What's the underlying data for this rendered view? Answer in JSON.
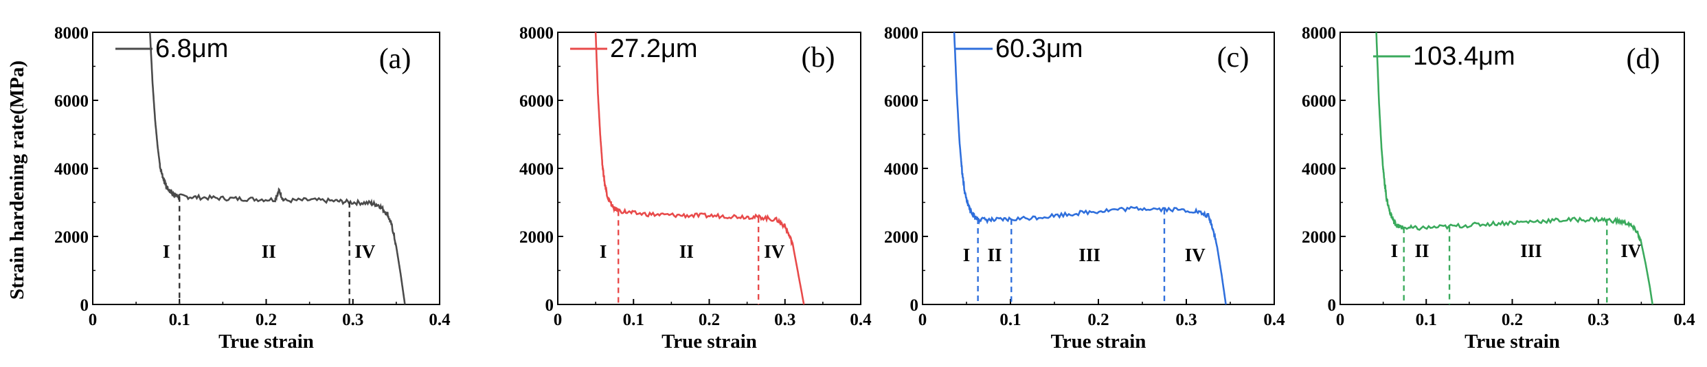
{
  "shared": {
    "xlabel": "True strain",
    "ylabel": "Strain hardening rate(MPa)",
    "xlim": [
      0,
      0.4
    ],
    "ylim": [
      0,
      8000
    ],
    "xticks": [
      "0",
      "0.1",
      "0.2",
      "0.3",
      "0.4"
    ],
    "yticks": [
      "0",
      "2000",
      "4000",
      "6000",
      "8000"
    ]
  },
  "chart_data": [
    {
      "type": "line",
      "panel": "(a)",
      "color": "#4a4a4a",
      "legend": "6.8μm",
      "series": [
        {
          "name": "6.8μm",
          "x": [
            0.066,
            0.069,
            0.072,
            0.075,
            0.078,
            0.082,
            0.086,
            0.09,
            0.095,
            0.1,
            0.12,
            0.15,
            0.18,
            0.21,
            0.215,
            0.22,
            0.25,
            0.28,
            0.3,
            0.32,
            0.33,
            0.34,
            0.345,
            0.35,
            0.355,
            0.36
          ],
          "y": [
            8000,
            6500,
            5400,
            4600,
            4000,
            3650,
            3420,
            3300,
            3220,
            3180,
            3150,
            3120,
            3100,
            3080,
            3350,
            3050,
            3070,
            3040,
            3000,
            2980,
            2920,
            2650,
            2300,
            1700,
            900,
            0
          ]
        }
      ],
      "dividers": [
        0.1,
        0.296
      ],
      "regions": [
        {
          "label": "I",
          "x": 0.085
        },
        {
          "label": "II",
          "x": 0.203
        },
        {
          "label": "IV",
          "x": 0.314
        }
      ],
      "title": "",
      "xlabel": "True strain",
      "ylabel": "Strain hardening rate(MPa)",
      "xlim": [
        0,
        0.4
      ],
      "ylim": [
        0,
        8000
      ]
    },
    {
      "type": "line",
      "panel": "(b)",
      "color": "#e84a4a",
      "legend": "27.2μm",
      "series": [
        {
          "name": "27.2μm",
          "x": [
            0.05,
            0.053,
            0.056,
            0.059,
            0.062,
            0.066,
            0.07,
            0.075,
            0.08,
            0.1,
            0.13,
            0.16,
            0.19,
            0.22,
            0.25,
            0.27,
            0.29,
            0.3,
            0.31,
            0.315,
            0.32,
            0.325
          ],
          "y": [
            8000,
            6200,
            5000,
            4100,
            3550,
            3150,
            2950,
            2820,
            2760,
            2680,
            2640,
            2620,
            2610,
            2600,
            2580,
            2560,
            2480,
            2300,
            1800,
            1200,
            600,
            0
          ]
        }
      ],
      "dividers": [
        0.08,
        0.265
      ],
      "regions": [
        {
          "label": "I",
          "x": 0.06
        },
        {
          "label": "II",
          "x": 0.17
        },
        {
          "label": "IV",
          "x": 0.286
        }
      ],
      "title": "",
      "xlabel": "True strain",
      "ylabel": "Strain hardening rate(MPa)",
      "xlim": [
        0,
        0.4
      ],
      "ylim": [
        0,
        8000
      ]
    },
    {
      "type": "line",
      "panel": "(c)",
      "color": "#2f6fdc",
      "legend": "60.3μm",
      "series": [
        {
          "name": "60.3μm",
          "x": [
            0.036,
            0.039,
            0.042,
            0.045,
            0.048,
            0.052,
            0.056,
            0.06,
            0.065,
            0.08,
            0.1,
            0.13,
            0.16,
            0.19,
            0.22,
            0.25,
            0.28,
            0.31,
            0.325,
            0.33,
            0.335,
            0.34,
            0.345
          ],
          "y": [
            8000,
            6200,
            4800,
            3900,
            3300,
            2900,
            2680,
            2560,
            2500,
            2480,
            2500,
            2560,
            2640,
            2720,
            2790,
            2830,
            2800,
            2750,
            2600,
            2250,
            1700,
            900,
            0
          ]
        }
      ],
      "dividers": [
        0.063,
        0.101,
        0.275
      ],
      "regions": [
        {
          "label": "I",
          "x": 0.05
        },
        {
          "label": "II",
          "x": 0.082
        },
        {
          "label": "III",
          "x": 0.19
        },
        {
          "label": "IV",
          "x": 0.31
        }
      ],
      "title": "",
      "xlabel": "True strain",
      "ylabel": "Strain hardening rate(MPa)",
      "xlim": [
        0,
        0.4
      ],
      "ylim": [
        0,
        8000
      ]
    },
    {
      "type": "line",
      "panel": "(d)",
      "color": "#3aaa5c",
      "legend": "103.4μm",
      "series": [
        {
          "name": "103.4μm",
          "x": [
            0.042,
            0.045,
            0.048,
            0.051,
            0.054,
            0.058,
            0.062,
            0.066,
            0.072,
            0.09,
            0.12,
            0.15,
            0.18,
            0.21,
            0.24,
            0.27,
            0.3,
            0.32,
            0.335,
            0.345,
            0.35,
            0.355,
            0.36,
            0.363
          ],
          "y": [
            8000,
            6000,
            4600,
            3700,
            3100,
            2700,
            2450,
            2320,
            2260,
            2240,
            2280,
            2330,
            2380,
            2420,
            2460,
            2490,
            2500,
            2460,
            2380,
            2150,
            1800,
            1200,
            500,
            0
          ]
        }
      ],
      "dividers": [
        0.074,
        0.127,
        0.31
      ],
      "regions": [
        {
          "label": "I",
          "x": 0.063
        },
        {
          "label": "II",
          "x": 0.095
        },
        {
          "label": "III",
          "x": 0.222
        },
        {
          "label": "IV",
          "x": 0.338
        }
      ],
      "title": "",
      "xlabel": "True strain",
      "ylabel": "Strain hardening rate(MPa)",
      "xlim": [
        0,
        0.4
      ],
      "ylim": [
        0,
        8000
      ]
    }
  ]
}
